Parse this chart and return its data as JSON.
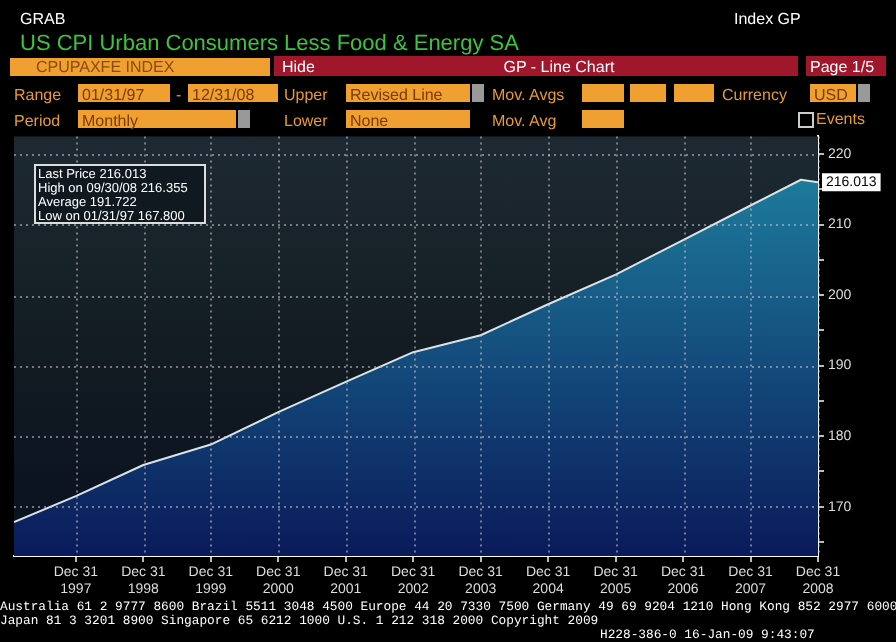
{
  "chart_data": {
    "type": "area",
    "title": "US CPI Urban Consumers Less Food & Energy SA",
    "x": [
      "1997-01-31",
      "1997-12-31",
      "1998-12-31",
      "1999-12-31",
      "2000-12-31",
      "2001-12-31",
      "2002-12-31",
      "2003-12-31",
      "2004-12-31",
      "2005-12-31",
      "2006-12-31",
      "2007-12-31",
      "2008-09-30",
      "2008-12-31"
    ],
    "series": [
      {
        "color": "#1f86a3",
        "values": [
          167.8,
          171.5,
          175.9,
          178.8,
          183.4,
          187.7,
          191.9,
          194.3,
          198.7,
          202.9,
          207.8,
          212.7,
          216.355,
          216.013
        ]
      }
    ],
    "xlim": [
      "1997-01-31",
      "2008-12-31"
    ],
    "xticks": [
      {
        "value": "1997-12-31",
        "label": "Dec 31\n1997"
      },
      {
        "value": "1998-12-31",
        "label": "Dec 31\n1998"
      },
      {
        "value": "1999-12-31",
        "label": "Dec 31\n1999"
      },
      {
        "value": "2000-12-31",
        "label": "Dec 31\n2000"
      },
      {
        "value": "2001-12-31",
        "label": "Dec 31\n2001"
      },
      {
        "value": "2002-12-31",
        "label": "Dec 31\n2002"
      },
      {
        "value": "2003-12-31",
        "label": "Dec 31\n2003"
      },
      {
        "value": "2004-12-31",
        "label": "Dec 31\n2004"
      },
      {
        "value": "2005-12-31",
        "label": "Dec 31\n2005"
      },
      {
        "value": "2006-12-31",
        "label": "Dec 31\n2006"
      },
      {
        "value": "2007-12-31",
        "label": "Dec 31\n2007"
      },
      {
        "value": "2008-12-31",
        "label": "Dec 31\n2008"
      }
    ],
    "ylim": [
      163,
      222.5
    ],
    "yticks": [
      {
        "value": 165,
        "label": null
      },
      170,
      {
        "value": 175,
        "label": null
      },
      180,
      {
        "value": 185,
        "label": null
      },
      190,
      {
        "value": 195,
        "label": null
      },
      200,
      {
        "value": 205,
        "label": null
      },
      210,
      {
        "value": 215,
        "label": null
      },
      220
    ],
    "grid": true,
    "legend": false,
    "annotations": [
      "GRAB",
      "Index GP",
      "CPUPAXFE INDEX",
      "Hide",
      "GP - Line Chart",
      "Page 1/5",
      "Range",
      "01/31/97",
      "-",
      "12/31/08",
      "Upper",
      "Revised Line",
      "Mov. Avgs",
      "Currency",
      "USD",
      "Period",
      "Monthly",
      "Lower",
      "None",
      "Mov. Avg",
      "Events",
      "Last Price 216.013",
      "High on 09/30/08 216.355",
      "Average 191.722",
      "Low on 01/31/97 167.800",
      "Australia 61 2 9777 8600 Brazil 5511 3048 4500 Europe 44 20 7330 7500 Germany 49 69 9204 1210 Hong Kong 852 2977 6000",
      "Japan 81 3 3201 8900 Singapore 65 6212 1000 U.S. 1 212 318 2000 Copyright 2009",
      "H228-386-0 16-Jan-09 9:43:07",
      {
        "text": "216.013",
        "x": "2008-12-31",
        "y": 216.013
      }
    ]
  }
}
